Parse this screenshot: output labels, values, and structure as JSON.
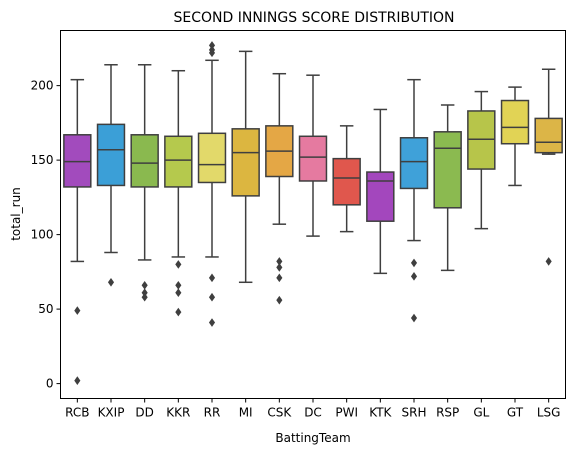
{
  "chart_data": {
    "type": "box",
    "title": "SECOND INNINGS SCORE DISTRIBUTION",
    "xlabel": "BattingTeam",
    "ylabel": "total_run",
    "ylim": [
      -10,
      237
    ],
    "yticks": [
      0,
      50,
      100,
      150,
      200
    ],
    "grid": false,
    "categories": [
      "RCB",
      "KXIP",
      "DD",
      "KKR",
      "RR",
      "MI",
      "CSK",
      "DC",
      "PWI",
      "KTK",
      "SRH",
      "RSP",
      "GL",
      "GT",
      "LSG"
    ],
    "boxes": [
      {
        "team": "RCB",
        "color": "#a24bbd",
        "whisker_low": 82,
        "q1": 132,
        "median": 149,
        "q3": 167,
        "whisker_high": 204,
        "outliers": [
          49,
          2
        ]
      },
      {
        "team": "KXIP",
        "color": "#3b9fd7",
        "whisker_low": 88,
        "q1": 133,
        "median": 157,
        "q3": 174,
        "whisker_high": 214,
        "outliers": [
          68
        ]
      },
      {
        "team": "DD",
        "color": "#8ab94f",
        "whisker_low": 83,
        "q1": 132,
        "median": 148,
        "q3": 167,
        "whisker_high": 214,
        "outliers": [
          66,
          61,
          58
        ]
      },
      {
        "team": "KKR",
        "color": "#b5c94d",
        "whisker_low": 85,
        "q1": 132,
        "median": 150,
        "q3": 166,
        "whisker_high": 210,
        "outliers": [
          80,
          66,
          61,
          48
        ]
      },
      {
        "team": "RR",
        "color": "#e2d96a",
        "whisker_low": 85,
        "q1": 135,
        "median": 147,
        "q3": 168,
        "whisker_high": 217,
        "outliers": [
          227,
          224,
          222,
          71,
          58,
          41
        ]
      },
      {
        "team": "MI",
        "color": "#dcb640",
        "whisker_low": 68,
        "q1": 126,
        "median": 155,
        "q3": 171,
        "whisker_high": 223,
        "outliers": []
      },
      {
        "team": "CSK",
        "color": "#e4a745",
        "whisker_low": 107,
        "q1": 139,
        "median": 156,
        "q3": 173,
        "whisker_high": 208,
        "outliers": [
          82,
          78,
          71,
          56
        ]
      },
      {
        "team": "DC",
        "color": "#e57aa0",
        "whisker_low": 99,
        "q1": 136,
        "median": 152,
        "q3": 166,
        "whisker_high": 207,
        "outliers": []
      },
      {
        "team": "PWI",
        "color": "#e0574d",
        "whisker_low": 102,
        "q1": 120,
        "median": 138,
        "q3": 151,
        "whisker_high": 173,
        "outliers": []
      },
      {
        "team": "KTK",
        "color": "#a347bd",
        "whisker_low": 74,
        "q1": 109,
        "median": 136,
        "q3": 142,
        "whisker_high": 184,
        "outliers": []
      },
      {
        "team": "SRH",
        "color": "#3fa1d9",
        "whisker_low": 96,
        "q1": 131,
        "median": 149,
        "q3": 165,
        "whisker_high": 204,
        "outliers": [
          81,
          72,
          44
        ]
      },
      {
        "team": "RSP",
        "color": "#8bba50",
        "whisker_low": 76,
        "q1": 118,
        "median": 158,
        "q3": 169,
        "whisker_high": 187,
        "outliers": []
      },
      {
        "team": "GL",
        "color": "#b7c54a",
        "whisker_low": 104,
        "q1": 144,
        "median": 164,
        "q3": 183,
        "whisker_high": 196,
        "outliers": []
      },
      {
        "team": "GT",
        "color": "#e1d355",
        "whisker_low": 133,
        "q1": 161,
        "median": 172,
        "q3": 190,
        "whisker_high": 199,
        "outliers": []
      },
      {
        "team": "LSG",
        "color": "#dcb547",
        "whisker_low": 154,
        "q1": 155,
        "median": 162,
        "q3": 178,
        "whisker_high": 211,
        "outliers": [
          82
        ]
      }
    ]
  }
}
